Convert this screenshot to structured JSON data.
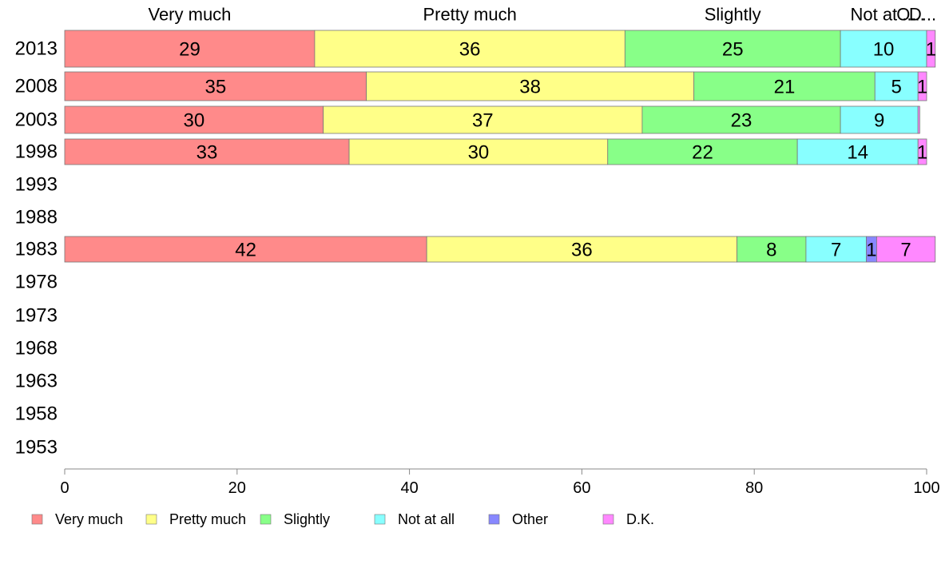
{
  "chart_data": {
    "type": "bar",
    "orientation": "horizontal",
    "stacked": true,
    "categories": [
      "2013",
      "2008",
      "2003",
      "1998",
      "1993",
      "1988",
      "1983",
      "1978",
      "1973",
      "1968",
      "1963",
      "1958",
      "1953"
    ],
    "series": [
      {
        "name": "Very much",
        "color": "#FF8A8A",
        "values": [
          29,
          35,
          30,
          33,
          null,
          null,
          42,
          null,
          null,
          null,
          null,
          null,
          null
        ],
        "labels": [
          "29",
          "35",
          "30",
          "33",
          "",
          "",
          "42",
          "",
          "",
          "",
          "",
          "",
          ""
        ]
      },
      {
        "name": "Pretty much",
        "color": "#FFFF88",
        "values": [
          36,
          38,
          37,
          30,
          null,
          null,
          36,
          null,
          null,
          null,
          null,
          null,
          null
        ],
        "labels": [
          "36",
          "38",
          "37",
          "30",
          "",
          "",
          "36",
          "",
          "",
          "",
          "",
          "",
          ""
        ]
      },
      {
        "name": "Slightly",
        "color": "#88FF88",
        "values": [
          25,
          21,
          23,
          22,
          null,
          null,
          8,
          null,
          null,
          null,
          null,
          null,
          null
        ],
        "labels": [
          "25",
          "21",
          "23",
          "22",
          "",
          "",
          "8",
          "",
          "",
          "",
          "",
          "",
          ""
        ]
      },
      {
        "name": "Not at all",
        "color": "#88FFFF",
        "values": [
          10,
          5,
          9,
          14,
          null,
          null,
          7,
          null,
          null,
          null,
          null,
          null,
          null
        ],
        "labels": [
          "10",
          "5",
          "9",
          "14",
          "",
          "",
          "7",
          "",
          "",
          "",
          "",
          "",
          ""
        ]
      },
      {
        "name": "Other",
        "color": "#8888FF",
        "values": [
          0,
          0,
          0,
          0,
          null,
          null,
          1.2,
          null,
          null,
          null,
          null,
          null,
          null
        ],
        "labels": [
          "",
          "",
          "",
          "",
          "",
          "",
          "1",
          "",
          "",
          "",
          "",
          "",
          ""
        ]
      },
      {
        "name": "D.K.",
        "color": "#FF88FF",
        "values": [
          1,
          1,
          0.2,
          1,
          null,
          null,
          6.8,
          null,
          null,
          null,
          null,
          null,
          null
        ],
        "labels": [
          "1",
          "1",
          "",
          "1",
          "",
          "",
          "7",
          "",
          "",
          "",
          "",
          "",
          ""
        ]
      }
    ],
    "top_labels": [
      "Very much",
      "Pretty much",
      "Slightly",
      "Not at ...",
      "O...",
      "D..."
    ],
    "xlim": [
      0,
      100
    ],
    "xticks": [
      "0",
      "20",
      "40",
      "60",
      "80",
      "100"
    ],
    "legend_position": "bottom",
    "grid": false
  }
}
